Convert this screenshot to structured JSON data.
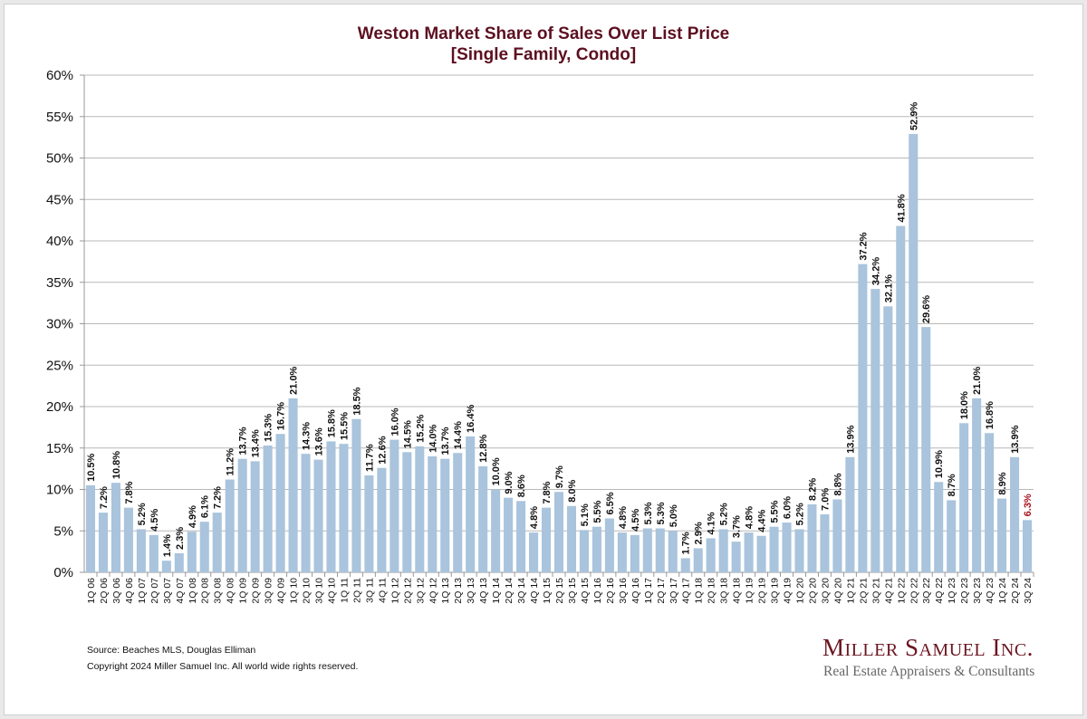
{
  "chart_data": {
    "type": "bar",
    "title": "Weston Market Share of Sales Over List Price",
    "subtitle": "[Single Family, Condo]",
    "xlabel": "",
    "ylabel": "",
    "ylim": [
      0,
      60
    ],
    "yticks": [
      "0%",
      "5%",
      "10%",
      "15%",
      "20%",
      "25%",
      "30%",
      "35%",
      "40%",
      "45%",
      "50%",
      "55%",
      "60%"
    ],
    "grid": true,
    "bar_color": "#a9c4dc",
    "label_color": "#111111",
    "highlight_color": "#a8141e",
    "highlight_last": true,
    "categories": [
      "1Q 06",
      "2Q 06",
      "3Q 06",
      "4Q 06",
      "1Q 07",
      "2Q 07",
      "3Q 07",
      "4Q 07",
      "1Q 08",
      "2Q 08",
      "3Q 08",
      "4Q 08",
      "1Q 09",
      "2Q 09",
      "3Q 09",
      "4Q 09",
      "1Q 10",
      "2Q 10",
      "3Q 10",
      "4Q 10",
      "1Q 11",
      "2Q 11",
      "3Q 11",
      "4Q 11",
      "1Q 12",
      "2Q 12",
      "3Q 12",
      "4Q 12",
      "1Q 13",
      "2Q 13",
      "3Q 13",
      "4Q 13",
      "1Q 14",
      "2Q 14",
      "3Q 14",
      "4Q 14",
      "1Q 15",
      "2Q 15",
      "3Q 15",
      "4Q 15",
      "1Q 16",
      "2Q 16",
      "3Q 16",
      "4Q 16",
      "1Q 17",
      "2Q 17",
      "3Q 17",
      "4Q 17",
      "1Q 18",
      "2Q 18",
      "3Q 18",
      "4Q 18",
      "1Q 19",
      "2Q 19",
      "3Q 19",
      "4Q 19",
      "1Q 20",
      "2Q 20",
      "3Q 20",
      "4Q 20",
      "1Q 21",
      "2Q 21",
      "3Q 21",
      "4Q 21",
      "1Q 22",
      "2Q 22",
      "3Q 22",
      "4Q 22",
      "1Q 23",
      "2Q 23",
      "3Q 23",
      "4Q 23",
      "1Q 24",
      "2Q 24",
      "3Q 24"
    ],
    "values": [
      10.5,
      7.2,
      10.8,
      7.8,
      5.2,
      4.5,
      1.4,
      2.3,
      4.9,
      6.1,
      7.2,
      11.2,
      13.7,
      13.4,
      15.3,
      16.7,
      21.0,
      14.3,
      13.6,
      15.8,
      15.5,
      18.5,
      11.7,
      12.6,
      16.0,
      14.5,
      15.2,
      14.0,
      13.7,
      14.4,
      16.4,
      12.8,
      10.0,
      9.0,
      8.6,
      4.8,
      7.8,
      9.7,
      8.0,
      5.1,
      5.5,
      6.5,
      4.8,
      4.5,
      5.3,
      5.3,
      5.0,
      1.7,
      2.9,
      4.1,
      5.2,
      3.7,
      4.8,
      4.4,
      5.5,
      6.0,
      5.2,
      8.2,
      7.0,
      8.8,
      13.9,
      37.2,
      34.2,
      32.1,
      41.8,
      52.9,
      29.6,
      10.9,
      8.7,
      18.0,
      21.0,
      16.8,
      8.9,
      13.9,
      6.3
    ],
    "data_labels": [
      "10.5%",
      "7.2%",
      "10.8%",
      "7.8%",
      "5.2%",
      "4.5%",
      "1.4%",
      "2.3%",
      "4.9%",
      "6.1%",
      "7.2%",
      "11.2%",
      "13.7%",
      "13.4%",
      "15.3%",
      "16.7%",
      "21.0%",
      "14.3%",
      "13.6%",
      "15.8%",
      "15.5%",
      "18.5%",
      "11.7%",
      "12.6%",
      "16.0%",
      "14.5%",
      "15.2%",
      "14.0%",
      "13.7%",
      "14.4%",
      "16.4%",
      "12.8%",
      "10.0%",
      "9.0%",
      "8.6%",
      "4.8%",
      "7.8%",
      "9.7%",
      "8.0%",
      "5.1%",
      "5.5%",
      "6.5%",
      "4.8%",
      "4.5%",
      "5.3%",
      "5.3%",
      "5.0%",
      "1.7%",
      "2.9%",
      "4.1%",
      "5.2%",
      "3.7%",
      "4.8%",
      "4.4%",
      "5.5%",
      "6.0%",
      "5.2%",
      "8.2%",
      "7.0%",
      "8.8%",
      "13.9%",
      "37.2%",
      "34.2%",
      "32.1%",
      "41.8%",
      "52.9%",
      "29.6%",
      "10.9%",
      "8.7%",
      "18.0%",
      "21.0%",
      "16.8%",
      "8.9%",
      "13.9%",
      "6.3%"
    ]
  },
  "footer": {
    "source": "Source: Beaches MLS, Douglas Elliman",
    "copyright": "Copyright 2024 Miller Samuel Inc.  All world wide rights reserved."
  },
  "logo": {
    "name": "Miller Samuel Inc.",
    "tagline": "Real Estate Appraisers & Consultants"
  }
}
